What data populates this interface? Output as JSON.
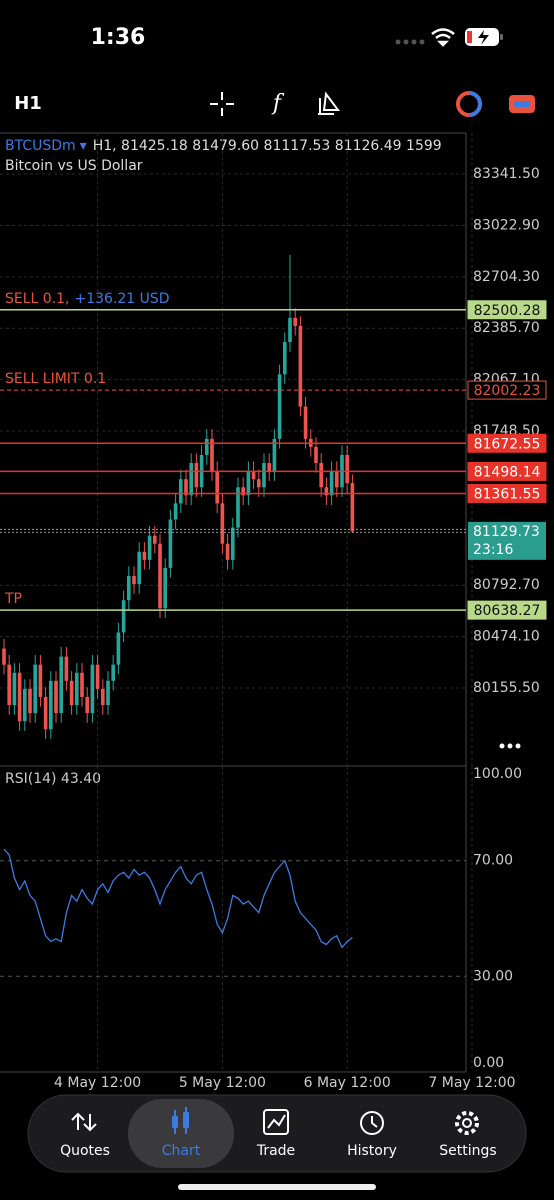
{
  "status_bar": {
    "time": "1:36"
  },
  "toolbar": {
    "timeframe": "H1"
  },
  "chart_data": {
    "type": "candlestick",
    "symbol": "BTCUSDm",
    "header": "H1, 81425.18 81479.60 81117.53 81126.49 1599",
    "subtitle": "Bitcoin vs US Dollar",
    "up_color": "#26a69a",
    "down_color": "#ef5350",
    "grid": true,
    "ylim": [
      79672,
      83596
    ],
    "xlim": [
      -0.77,
      88.85
    ],
    "yticks": [
      {
        "value": 83341.5,
        "label": "83341.50"
      },
      {
        "value": 83022.9,
        "label": "83022.90"
      },
      {
        "value": 82704.3,
        "label": "82704.30"
      },
      {
        "value": 82385.7,
        "label": "82385.70"
      },
      {
        "value": 82067.1,
        "label": "82067.10"
      },
      {
        "value": 81748.5,
        "label": "81748.50"
      },
      {
        "value": 80792.7,
        "label": "80792.70"
      },
      {
        "value": 80474.1,
        "label": "80474.10"
      },
      {
        "value": 80155.5,
        "label": "80155.50"
      }
    ],
    "xticks": [
      {
        "value": 18,
        "label": "4 May 12:00"
      },
      {
        "value": 42,
        "label": "5 May 12:00"
      },
      {
        "value": 66,
        "label": "6 May 12:00"
      },
      {
        "value": 90,
        "label": "7 May 12:00"
      }
    ],
    "ohlc": [
      [
        80400,
        80460,
        80240,
        80300
      ],
      [
        80300,
        80360,
        79990,
        80050
      ],
      [
        80050,
        80310,
        79990,
        80250
      ],
      [
        80250,
        80310,
        79890,
        79950
      ],
      [
        79950,
        80210,
        79890,
        80150
      ],
      [
        80150,
        80210,
        79940,
        80000
      ],
      [
        80000,
        80360,
        79940,
        80300
      ],
      [
        80300,
        80360,
        80040,
        80100
      ],
      [
        80100,
        80160,
        79840,
        79900
      ],
      [
        79900,
        80260,
        79840,
        80200
      ],
      [
        80200,
        80260,
        79940,
        80000
      ],
      [
        80000,
        80410,
        79940,
        80350
      ],
      [
        80350,
        80410,
        80140,
        80200
      ],
      [
        80200,
        80260,
        79990,
        80050
      ],
      [
        80050,
        80310,
        79990,
        80250
      ],
      [
        80250,
        80310,
        80040,
        80100
      ],
      [
        80100,
        80160,
        79940,
        80000
      ],
      [
        80000,
        80360,
        79940,
        80300
      ],
      [
        80300,
        80360,
        80090,
        80150
      ],
      [
        80150,
        80210,
        79990,
        80050
      ],
      [
        80050,
        80260,
        79990,
        80200
      ],
      [
        80200,
        80360,
        80140,
        80300
      ],
      [
        80300,
        80560,
        80240,
        80500
      ],
      [
        80500,
        80760,
        80440,
        80700
      ],
      [
        80700,
        80910,
        80640,
        80850
      ],
      [
        80850,
        80910,
        80740,
        80800
      ],
      [
        80800,
        81060,
        80740,
        81000
      ],
      [
        81000,
        81060,
        80890,
        80950
      ],
      [
        80950,
        81160,
        80890,
        81100
      ],
      [
        81100,
        81160,
        80990,
        81050
      ],
      [
        81050,
        81110,
        80590,
        80650
      ],
      [
        80650,
        80960,
        80590,
        80900
      ],
      [
        80900,
        81260,
        80840,
        81200
      ],
      [
        81200,
        81360,
        81140,
        81300
      ],
      [
        81300,
        81510,
        81240,
        81450
      ],
      [
        81450,
        81510,
        81290,
        81350
      ],
      [
        81350,
        81610,
        81290,
        81550
      ],
      [
        81550,
        81610,
        81340,
        81400
      ],
      [
        81400,
        81660,
        81340,
        81600
      ],
      [
        81600,
        81760,
        81540,
        81700
      ],
      [
        81700,
        81760,
        81440,
        81500
      ],
      [
        81500,
        81560,
        81240,
        81300
      ],
      [
        81300,
        81360,
        80990,
        81050
      ],
      [
        81050,
        81110,
        80890,
        80950
      ],
      [
        80950,
        81210,
        80890,
        81150
      ],
      [
        81150,
        81460,
        81090,
        81400
      ],
      [
        81400,
        81460,
        81290,
        81350
      ],
      [
        81350,
        81560,
        81290,
        81500
      ],
      [
        81500,
        81560,
        81390,
        81450
      ],
      [
        81450,
        81510,
        81340,
        81400
      ],
      [
        81400,
        81610,
        81340,
        81550
      ],
      [
        81550,
        81610,
        81440,
        81500
      ],
      [
        81500,
        81760,
        81440,
        81700
      ],
      [
        81700,
        82160,
        81640,
        82100
      ],
      [
        82100,
        82360,
        82040,
        82300
      ],
      [
        82300,
        82840,
        82240,
        82450
      ],
      [
        82450,
        82510,
        82340,
        82400
      ],
      [
        82400,
        82460,
        81840,
        81900
      ],
      [
        81900,
        81960,
        81640,
        81700
      ],
      [
        81700,
        81760,
        81590,
        81650
      ],
      [
        81650,
        81710,
        81490,
        81550
      ],
      [
        81550,
        81610,
        81340,
        81400
      ],
      [
        81400,
        81460,
        81290,
        81350
      ],
      [
        81350,
        81560,
        81290,
        81500
      ],
      [
        81500,
        81560,
        81340,
        81400
      ],
      [
        81400,
        81660,
        81340,
        81600
      ],
      [
        81600,
        81660,
        81360,
        81425.18
      ],
      [
        81425.18,
        81479.6,
        81117.53,
        81126.49
      ]
    ],
    "levels": [
      {
        "name": "SELL 0.1,",
        "note": "+136.21 USD",
        "value": 82500.28,
        "color": "#b9d98a",
        "style": "solid"
      },
      {
        "name": "SELL LIMIT 0.1",
        "value": 82002.23,
        "color": "#e8533f",
        "style": "dashed"
      },
      {
        "value": 81672.55,
        "color": "#e8332a",
        "style": "solid"
      },
      {
        "value": 81498.14,
        "color": "#e8332a",
        "style": "solid"
      },
      {
        "value": 81361.55,
        "color": "#e8332a",
        "style": "solid"
      },
      {
        "name": "TP",
        "value": 80638.27,
        "color": "#b9d98a",
        "style": "solid"
      }
    ],
    "current": {
      "value": 81129.73,
      "timer": "23:16",
      "color": "#2a9d8f"
    },
    "rsi": {
      "title": "RSI(14) 43.40",
      "color": "#3d7be0",
      "ylim": [
        0,
        100
      ],
      "yticks": [
        {
          "value": 100,
          "label": "100.00"
        },
        {
          "value": 70,
          "label": "70.00"
        },
        {
          "value": 30,
          "label": "30.00"
        },
        {
          "value": 0,
          "label": "0.00"
        }
      ],
      "values": [
        74,
        72,
        64,
        60,
        63,
        58,
        56,
        50,
        44,
        42,
        43,
        42,
        52,
        58,
        56,
        60,
        57,
        55,
        60,
        62,
        59,
        63,
        65,
        66,
        64,
        67,
        65,
        66,
        64,
        60,
        55,
        60,
        63,
        66,
        68,
        64,
        62,
        65,
        66,
        60,
        55,
        48,
        45,
        50,
        58,
        57,
        55,
        56,
        54,
        52,
        58,
        62,
        66,
        68,
        70,
        65,
        56,
        52,
        50,
        48,
        46,
        42,
        41,
        43,
        44,
        40,
        42,
        43.4
      ]
    }
  },
  "tab_bar": {
    "tabs": [
      "Quotes",
      "Chart",
      "Trade",
      "History",
      "Settings"
    ],
    "active": 1
  }
}
